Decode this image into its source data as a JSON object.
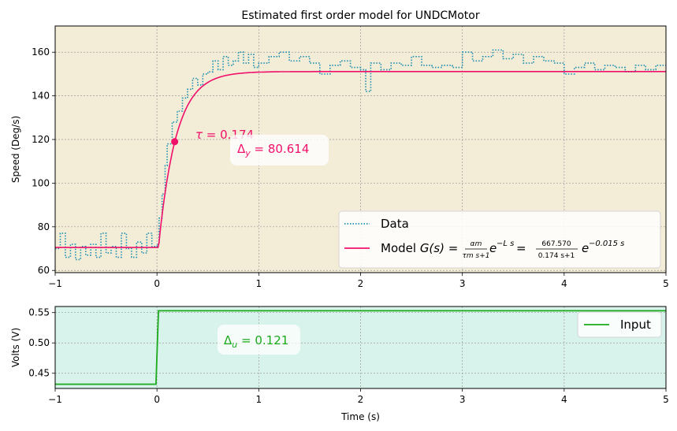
{
  "chart_data": [
    {
      "type": "line",
      "title": "Estimated first order model for UNDCMotor",
      "xlabel": "",
      "ylabel": "Speed (Deg/s)",
      "xlim": [
        -1,
        5
      ],
      "ylim": [
        59,
        172
      ],
      "xticks": [
        "-1",
        "0",
        "1",
        "2",
        "3",
        "4",
        "5"
      ],
      "yticks": [
        "60",
        "80",
        "100",
        "120",
        "140",
        "160"
      ],
      "grid": true,
      "background": "#f3ecd7",
      "legend_position": "lower-right",
      "series": [
        {
          "name": "Data",
          "color": "#1a8fb0",
          "style": "dotted",
          "x": [
            -1.0,
            -0.95,
            -0.9,
            -0.85,
            -0.8,
            -0.75,
            -0.7,
            -0.65,
            -0.6,
            -0.55,
            -0.5,
            -0.45,
            -0.4,
            -0.35,
            -0.3,
            -0.25,
            -0.2,
            -0.15,
            -0.1,
            -0.05,
            0.0,
            0.02,
            0.05,
            0.08,
            0.1,
            0.15,
            0.2,
            0.25,
            0.3,
            0.35,
            0.4,
            0.45,
            0.5,
            0.55,
            0.6,
            0.65,
            0.7,
            0.75,
            0.8,
            0.85,
            0.9,
            0.95,
            1.0,
            1.1,
            1.2,
            1.3,
            1.4,
            1.5,
            1.6,
            1.7,
            1.8,
            1.9,
            2.0,
            2.05,
            2.1,
            2.2,
            2.3,
            2.4,
            2.5,
            2.6,
            2.7,
            2.8,
            2.9,
            3.0,
            3.1,
            3.2,
            3.3,
            3.4,
            3.5,
            3.6,
            3.7,
            3.8,
            3.9,
            4.0,
            4.1,
            4.2,
            4.3,
            4.4,
            4.5,
            4.6,
            4.7,
            4.8,
            4.9,
            5.0
          ],
          "y": [
            70,
            77,
            66,
            72,
            65,
            71,
            67,
            72,
            66,
            77,
            68,
            71,
            66,
            77,
            70,
            66,
            73,
            68,
            77,
            71,
            72,
            84,
            95,
            108,
            118,
            128,
            133,
            139,
            143,
            148,
            145,
            150,
            151,
            156,
            152,
            158,
            154,
            156,
            160,
            155,
            159,
            153,
            155,
            158,
            160,
            156,
            158,
            155,
            150,
            154,
            156,
            153,
            152,
            142,
            155,
            152,
            155,
            154,
            158,
            154,
            153,
            154,
            153,
            160,
            156,
            158,
            161,
            157,
            159,
            155,
            158,
            156,
            155,
            150,
            153,
            155,
            152,
            154,
            153,
            151,
            154,
            152,
            154,
            153
          ]
        },
        {
          "name": "Model",
          "color": "#f0106a",
          "style": "solid",
          "model": {
            "y0": 70.514,
            "delta_y": 80.614,
            "tau": 0.174,
            "delay": 0.015,
            "gain": 667.57,
            "step_time": 0.0
          }
        }
      ],
      "legend": [
        {
          "label": "Data"
        },
        {
          "label_prefix": "Model ",
          "formula_main": "G(s) = ",
          "formula_frac1_num": "αm",
          "formula_frac1_den": "τm s+1",
          "formula_exp1": "e",
          "formula_exp1_sup": "−L s",
          "formula_eq": " = ",
          "formula_frac2_num": "667.570",
          "formula_frac2_den": "0.174 s+1",
          "formula_exp2": "e",
          "formula_exp2_sup": "−0.015 s"
        }
      ],
      "annotations": [
        {
          "text": "τ = 0.174",
          "color": "#f0106a"
        },
        {
          "text": "Δy = 80.614",
          "color": "#f0106a"
        }
      ],
      "marker_point": {
        "x": 0.174,
        "y": 119.0,
        "color": "#f0106a"
      }
    },
    {
      "type": "line",
      "title": "",
      "xlabel": "Time (s)",
      "ylabel": "Volts (V)",
      "xlim": [
        -1,
        5
      ],
      "ylim": [
        0.425,
        0.56
      ],
      "xticks": [
        "-1",
        "0",
        "1",
        "2",
        "3",
        "4",
        "5"
      ],
      "yticks": [
        "0.45",
        "0.50",
        "0.55"
      ],
      "grid": true,
      "background": "#d8f3ec",
      "legend_position": "upper-right",
      "series": [
        {
          "name": "Input",
          "color": "#1aaa1a",
          "style": "solid",
          "x": [
            -1.0,
            -0.01,
            0.015,
            5.0
          ],
          "y": [
            0.432,
            0.432,
            0.553,
            0.553
          ]
        }
      ],
      "annotations": [
        {
          "text": "Δu = 0.121",
          "color": "#1aaa1a"
        }
      ]
    }
  ],
  "labels": {
    "tau_sym": "τ",
    "tau_eq": " = 0.174",
    "dy_sym": "Δ",
    "dy_sub": "y",
    "dy_eq": " = 80.614",
    "du_sym": "Δ",
    "du_sub": "u",
    "du_eq": " = 0.121"
  }
}
